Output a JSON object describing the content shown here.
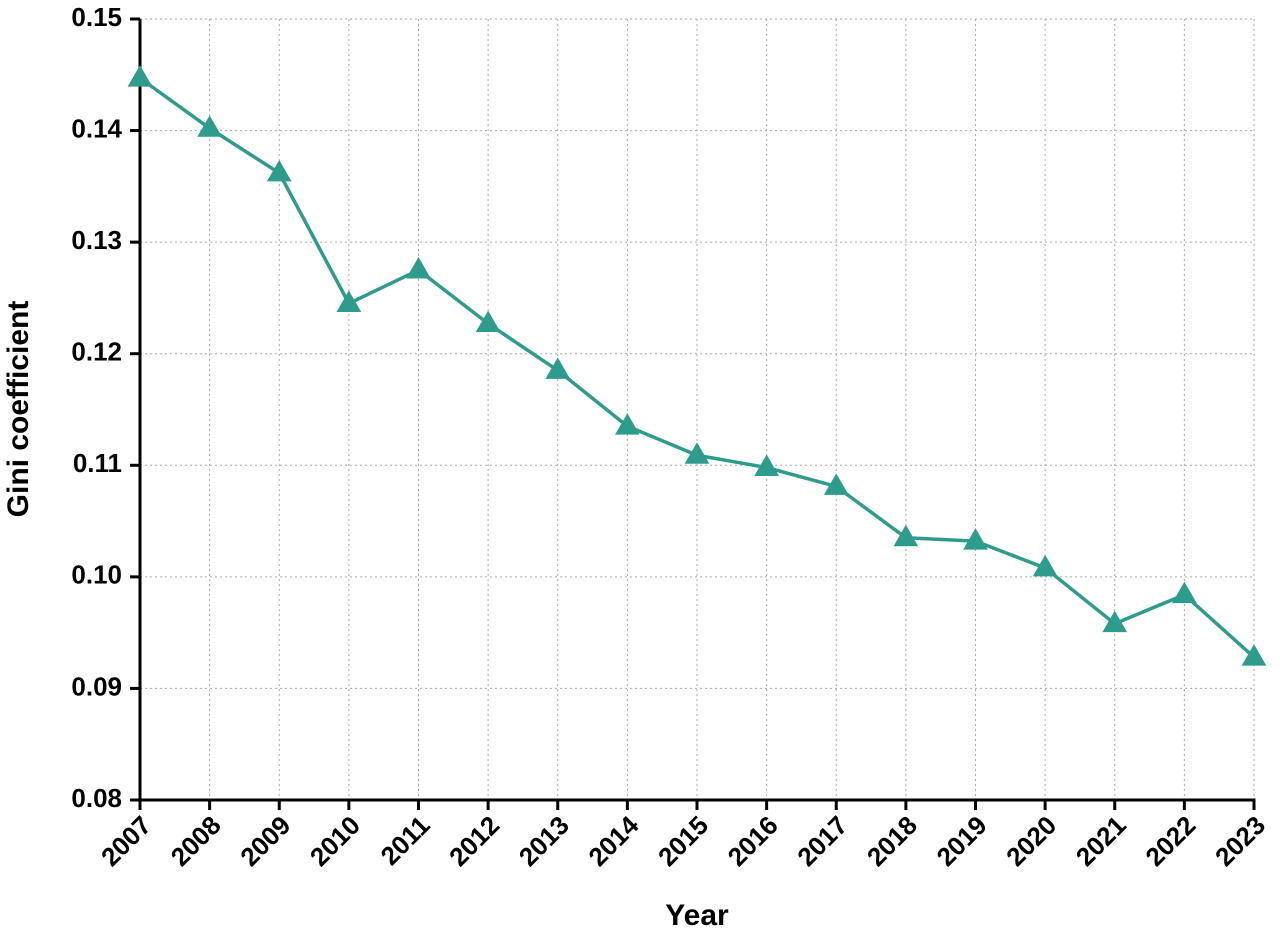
{
  "chart_data": {
    "type": "line",
    "x_label": "Year",
    "y_label": "Gini coefficient",
    "x": [
      2007,
      2008,
      2009,
      2010,
      2011,
      2012,
      2013,
      2014,
      2015,
      2016,
      2017,
      2018,
      2019,
      2020,
      2021,
      2022,
      2023
    ],
    "values": [
      0.1447,
      0.1402,
      0.1362,
      0.1245,
      0.1275,
      0.1227,
      0.1185,
      0.1135,
      0.1109,
      0.1098,
      0.1081,
      0.1035,
      0.1032,
      0.1008,
      0.0958,
      0.0984,
      0.0928
    ],
    "color": "#2e9c8c",
    "xlim": [
      2007,
      2023
    ],
    "xticks": [
      2007,
      2008,
      2009,
      2010,
      2011,
      2012,
      2013,
      2014,
      2015,
      2016,
      2017,
      2018,
      2019,
      2020,
      2021,
      2022,
      2023
    ],
    "ylim": [
      0.08,
      0.15
    ],
    "yticks": [
      0.08,
      0.09,
      {
        "value": 0.1,
        "label": "0.10"
      },
      0.11,
      0.12,
      0.13,
      0.14,
      0.15
    ],
    "grid": true,
    "marker": "triangle"
  }
}
